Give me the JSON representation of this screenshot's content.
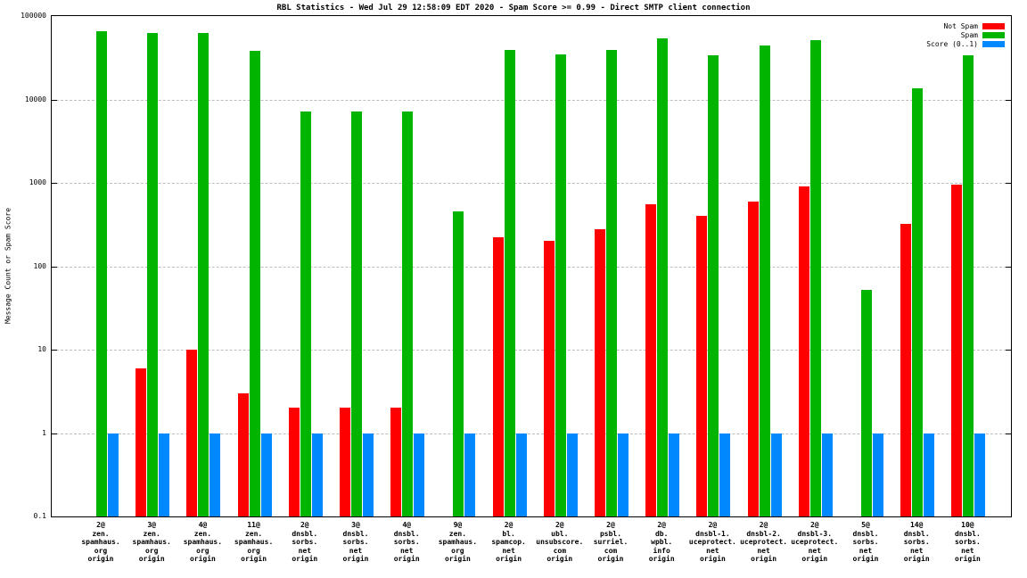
{
  "chart_data": {
    "type": "bar",
    "title": "RBL Statistics - Wed Jul 29 12:58:09 EDT 2020 - Spam Score >= 0.99 - Direct SMTP client connection",
    "ylabel": "Message Count or Spam Score",
    "xlabel": "",
    "yscale": "log",
    "ylim": [
      0.1,
      100000
    ],
    "yticks": [
      0.1,
      1,
      10,
      100,
      1000,
      10000,
      100000
    ],
    "ytick_labels": [
      "0.1",
      "1",
      "10",
      "100",
      "1000",
      "10000",
      "100000"
    ],
    "grid": true,
    "legend_position": "top-right",
    "categories": [
      [
        "2@",
        "zen.",
        "spamhaus.",
        "org",
        "origin"
      ],
      [
        "3@",
        "zen.",
        "spamhaus.",
        "org",
        "origin"
      ],
      [
        "4@",
        "zen.",
        "spamhaus.",
        "org",
        "origin"
      ],
      [
        "11@",
        "zen.",
        "spamhaus.",
        "org",
        "origin"
      ],
      [
        "2@",
        "dnsbl.",
        "sorbs.",
        "net",
        "origin"
      ],
      [
        "3@",
        "dnsbl.",
        "sorbs.",
        "net",
        "origin"
      ],
      [
        "4@",
        "dnsbl.",
        "sorbs.",
        "net",
        "origin"
      ],
      [
        "9@",
        "zen.",
        "spamhaus.",
        "org",
        "origin"
      ],
      [
        "2@",
        "bl.",
        "spamcop.",
        "net",
        "origin"
      ],
      [
        "2@",
        "ubl.",
        "unsubscore.",
        "com",
        "origin"
      ],
      [
        "2@",
        "psbl.",
        "surriel.",
        "com",
        "origin"
      ],
      [
        "2@",
        "db.",
        "wpbl.",
        "info",
        "origin"
      ],
      [
        "2@",
        "dnsbl-1.",
        "uceprotect.",
        "net",
        "origin"
      ],
      [
        "2@",
        "dnsbl-2.",
        "uceprotect.",
        "net",
        "origin"
      ],
      [
        "2@",
        "dnsbl-3.",
        "uceprotect.",
        "net",
        "origin"
      ],
      [
        "5@",
        "dnsbl.",
        "sorbs.",
        "net",
        "origin"
      ],
      [
        "14@",
        "dnsbl.",
        "sorbs.",
        "net",
        "origin"
      ],
      [
        "10@",
        "dnsbl.",
        "sorbs.",
        "net",
        "origin"
      ]
    ],
    "series": [
      {
        "name": "Not Spam",
        "color": "#ff0000",
        "values": [
          0,
          6,
          10,
          3,
          2,
          2,
          2,
          0,
          220,
          200,
          280,
          550,
          400,
          600,
          900,
          0,
          320,
          950
        ]
      },
      {
        "name": "Spam",
        "color": "#00b400",
        "values": [
          65000,
          62000,
          62000,
          38000,
          7200,
          7200,
          7200,
          460,
          39000,
          35000,
          39000,
          54000,
          34000,
          44000,
          51000,
          52,
          13500,
          34000
        ]
      },
      {
        "name": "Score (0..1)",
        "color": "#0088ff",
        "values": [
          1,
          1,
          1,
          1,
          1,
          1,
          1,
          1,
          1,
          1,
          1,
          1,
          1,
          1,
          1,
          1,
          1,
          1
        ]
      }
    ]
  }
}
